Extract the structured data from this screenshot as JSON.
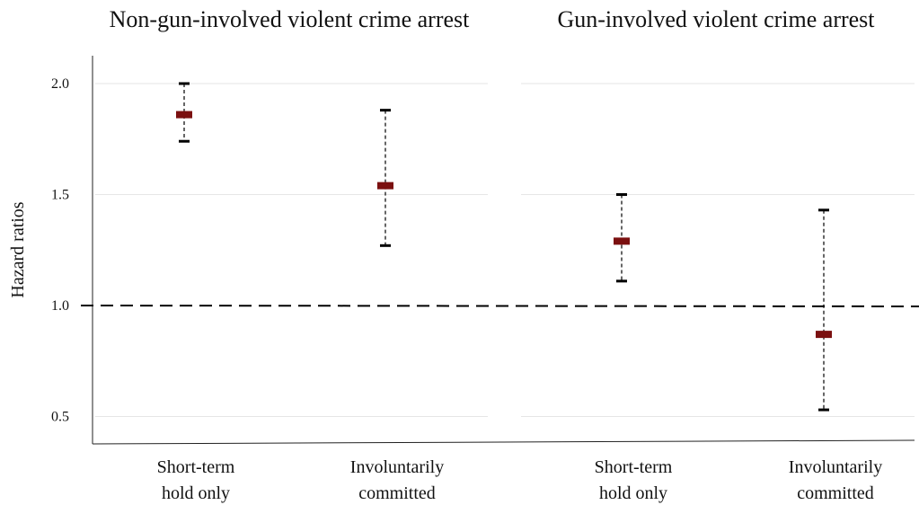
{
  "chart_data": {
    "type": "scatter",
    "ylabel": "Hazard ratios",
    "yticks": [
      "0.5",
      "1.0",
      "1.5",
      "2.0"
    ],
    "ytick_values": [
      0.5,
      1.0,
      1.5,
      2.0
    ],
    "ylim": [
      0.4,
      2.12
    ],
    "reference_line": 1.0,
    "grid": true,
    "marker_color": "#7b1010",
    "panels": [
      {
        "title": "Non-gun-involved violent crime arrest",
        "categories": [
          "Short-term hold only",
          "Involuntarily committed"
        ],
        "category_lines": [
          [
            "Short-term",
            "hold only"
          ],
          [
            "Involuntarily",
            "committed"
          ]
        ],
        "estimates": [
          1.86,
          1.54
        ],
        "lower": [
          1.74,
          1.27
        ],
        "upper": [
          2.0,
          1.88
        ]
      },
      {
        "title": "Gun-involved violent crime arrest",
        "categories": [
          "Short-term hold only",
          "Involuntarily committed"
        ],
        "category_lines": [
          [
            "Short-term",
            "hold only"
          ],
          [
            "Involuntarily",
            "committed"
          ]
        ],
        "estimates": [
          1.29,
          0.87
        ],
        "lower": [
          1.11,
          0.53
        ],
        "upper": [
          1.5,
          1.43
        ]
      }
    ]
  }
}
